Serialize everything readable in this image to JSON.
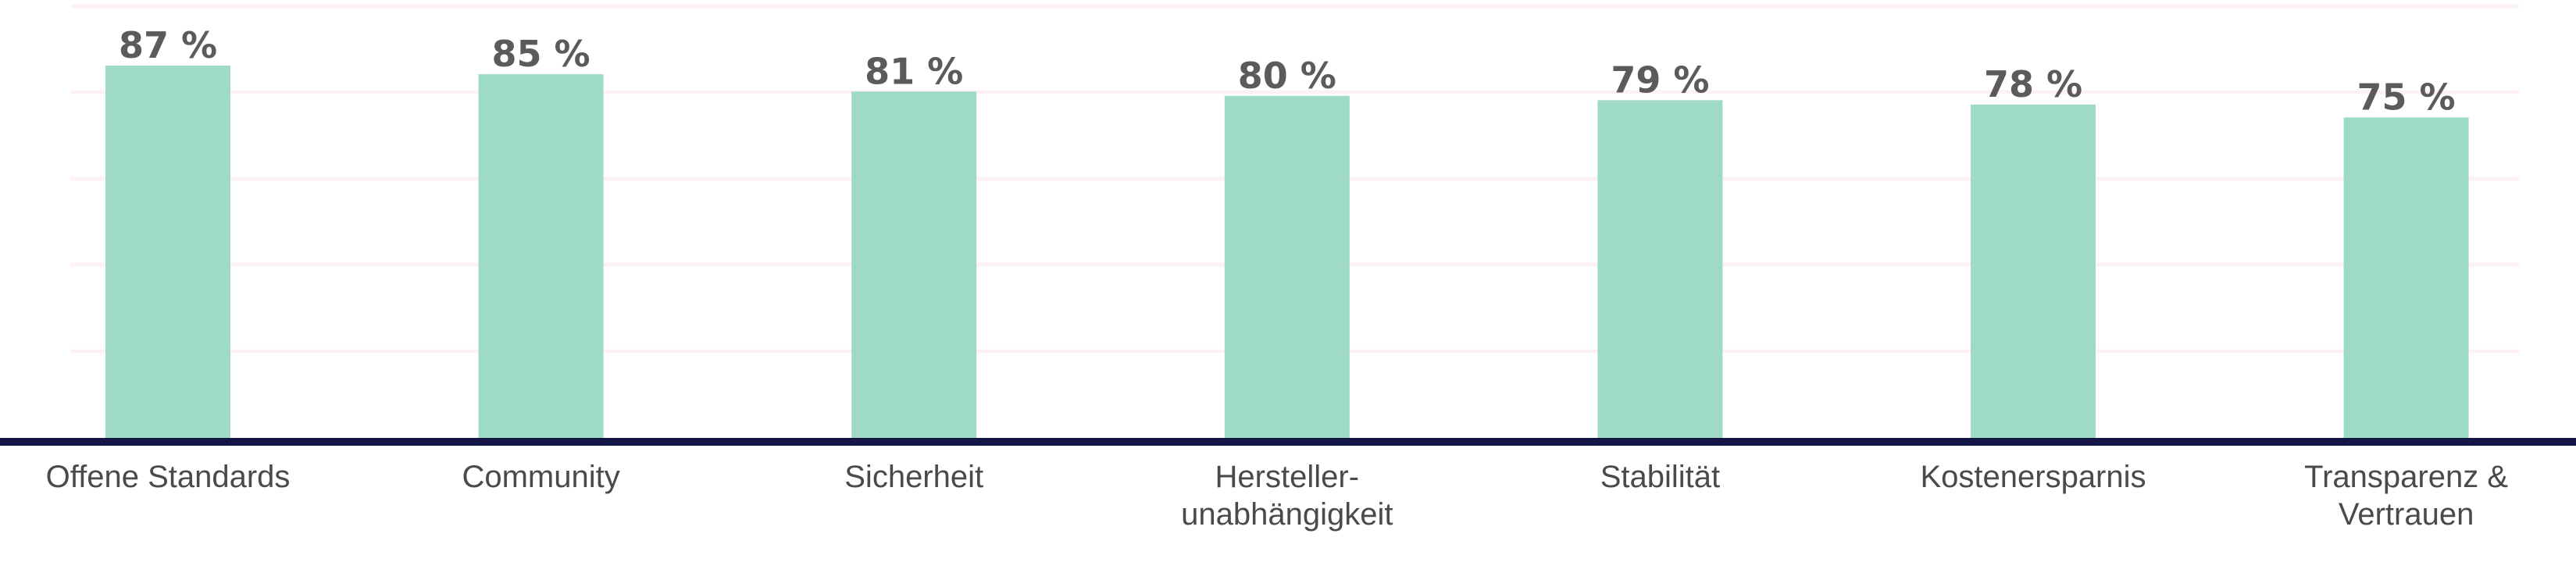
{
  "chart_data": {
    "type": "bar",
    "title": "",
    "xlabel": "",
    "ylabel": "",
    "ylim": [
      0,
      100
    ],
    "grid": true,
    "legend": "none",
    "value_suffix": " %",
    "categories": [
      "Offene Standards",
      "Community",
      "Sicherheit",
      "Hersteller-\nunabhängigkeit",
      "Stabilität",
      "Kostenersparnis",
      "Transparenz &\nVertrauen"
    ],
    "values": [
      87,
      85,
      81,
      80,
      79,
      78,
      75
    ],
    "value_labels": [
      "87 %",
      "85 %",
      "81 %",
      "80 %",
      "79 %",
      "78 %",
      "75 %"
    ]
  },
  "colors": {
    "bar": "#9fd9c8",
    "axis": "#141446",
    "grid": "#fdf1f3",
    "value_text": "#5b5b5b",
    "category_text": "#4a4a4a"
  }
}
